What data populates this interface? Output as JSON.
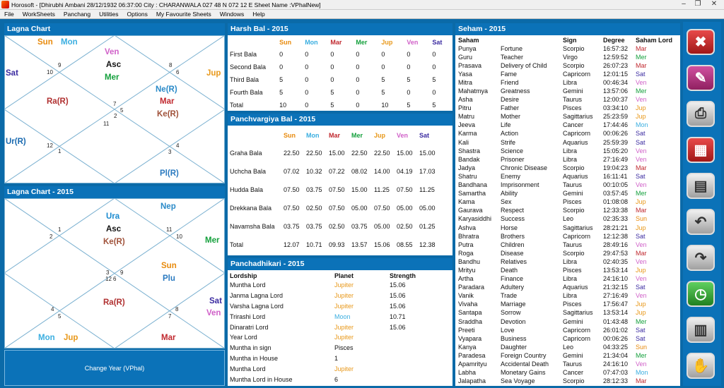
{
  "window": {
    "title": "Horosoft - [Dhirubhi Ambani 28/12/1932 06:37:00  City : CHARANWALA 027 48 N 072 12 E          Sheet Name :VPhalNew]",
    "minimize": "–",
    "restore": "❐",
    "close": "✕"
  },
  "menu": [
    "File",
    "WorkSheets",
    "Panchang",
    "Utilities",
    "Options",
    "My Favourite Sheets",
    "Windows",
    "Help"
  ],
  "lagna_chart": {
    "title": "Lagna Chart",
    "houses": [
      "9",
      "10",
      "8",
      "11",
      "12",
      "1",
      "7",
      "6",
      "5",
      "2",
      "4",
      "3"
    ],
    "planets": {
      "sun": "Sun",
      "mon": "Mon",
      "ven": "Ven",
      "asc": "Asc",
      "mer": "Mer",
      "sat": "Sat",
      "jup": "Jup",
      "ra": "Ra(R)",
      "ne": "Ne(R)",
      "mar": "Mar",
      "ke": "Ke(R)",
      "ur": "Ur(R)",
      "pl": "Pl(R)"
    }
  },
  "lagna_chart_2015": {
    "title": "Lagna Chart - 2015",
    "houses": [
      "1",
      "2",
      "11",
      "10",
      "3",
      "12",
      "4",
      "5",
      "9",
      "6",
      "8",
      "7"
    ],
    "planets": {
      "ura": "Ura",
      "asc": "Asc",
      "ke": "Ke(R)",
      "nep": "Nep",
      "mer": "Mer",
      "sun": "Sun",
      "plu": "Plu",
      "ra": "Ra(R)",
      "sat": "Sat",
      "ven": "Ven",
      "mon": "Mon",
      "jup": "Jup",
      "mar": "Mar"
    }
  },
  "change_year": "Change Year (VPhal)",
  "harsh_bal": {
    "title": "Harsh Bal - 2015",
    "headers": [
      "",
      "Sun",
      "Mon",
      "Mar",
      "Mer",
      "Jup",
      "Ven",
      "Sat"
    ],
    "rows": [
      [
        "First Bala",
        "0",
        "0",
        "0",
        "0",
        "0",
        "0",
        "0"
      ],
      [
        "Second Bala",
        "0",
        "0",
        "0",
        "0",
        "0",
        "0",
        "0"
      ],
      [
        "Third Bala",
        "5",
        "0",
        "0",
        "0",
        "5",
        "5",
        "5"
      ],
      [
        "Fourth Bala",
        "5",
        "0",
        "5",
        "0",
        "5",
        "0",
        "0"
      ],
      [
        "Total",
        "10",
        "0",
        "5",
        "0",
        "10",
        "5",
        "5"
      ]
    ]
  },
  "panchvargiya": {
    "title": "Panchvargiya Bal - 2015",
    "headers": [
      "",
      "Sun",
      "Mon",
      "Mar",
      "Mer",
      "Jup",
      "Ven",
      "Sat"
    ],
    "rows": [
      [
        "Graha Bala",
        "22.50",
        "22.50",
        "15.00",
        "22.50",
        "22.50",
        "15.00",
        "15.00"
      ],
      [
        "Uchcha Bala",
        "07.02",
        "10.32",
        "07.22",
        "08.02",
        "14.00",
        "04.19",
        "17.03"
      ],
      [
        "Hudda Bala",
        "07.50",
        "03.75",
        "07.50",
        "15.00",
        "11.25",
        "07.50",
        "11.25"
      ],
      [
        "Drekkana Bala",
        "07.50",
        "02.50",
        "07.50",
        "05.00",
        "07.50",
        "05.00",
        "05.00"
      ],
      [
        "Navamsha Bala",
        "03.75",
        "03.75",
        "02.50",
        "03.75",
        "05.00",
        "02.50",
        "01.25"
      ],
      [
        "Total",
        "12.07",
        "10.71",
        "09.93",
        "13.57",
        "15.06",
        "08.55",
        "12.38"
      ]
    ]
  },
  "panchadhikari": {
    "title": "Panchadhikari - 2015",
    "headers": [
      "Lordship",
      "Planet",
      "Strength"
    ],
    "rows": [
      [
        "Muntha Lord",
        "Jupiter",
        "15.06"
      ],
      [
        "Janma Lagna Lord",
        "Jupiter",
        "15.06"
      ],
      [
        "Varsha Lagna Lord",
        "Jupiter",
        "15.06"
      ],
      [
        "Trirashi Lord",
        "Moon",
        "10.71"
      ],
      [
        "Dinaratri Lord",
        "Jupiter",
        "15.06"
      ],
      [
        "Year Lord",
        "Jupiter",
        ""
      ],
      [
        "Muntha in sign",
        "Pisces",
        ""
      ],
      [
        "Muntha in House",
        "1",
        ""
      ],
      [
        "Muntha Lord",
        "Jupiter",
        ""
      ],
      [
        "Muntha Lord in House",
        "6",
        ""
      ]
    ]
  },
  "seham": {
    "title": "Seham - 2015",
    "headers": [
      "Saham",
      "",
      "Sign",
      "Degree",
      "Saham Lord"
    ],
    "rows": [
      [
        "Punya",
        "Fortune",
        "Scorpio",
        "16:57:32",
        "Mar"
      ],
      [
        "Guru",
        "Teacher",
        "Virgo",
        "12:59:52",
        "Mer"
      ],
      [
        "Prasava",
        "Delivery of Child",
        "Scorpio",
        "26:07:23",
        "Mar"
      ],
      [
        "Yasa",
        "Fame",
        "Capricorn",
        "12:01:15",
        "Sat"
      ],
      [
        "Mitra",
        "Friend",
        "Libra",
        "00:46:34",
        "Ven"
      ],
      [
        "Mahatmya",
        "Greatness",
        "Gemini",
        "13:57:06",
        "Mer"
      ],
      [
        "Asha",
        "Desire",
        "Taurus",
        "12:00:37",
        "Ven"
      ],
      [
        "Pitru",
        "Father",
        "Pisces",
        "03:34:10",
        "Jup"
      ],
      [
        "Matru",
        "Mother",
        "Sagittarius",
        "25:23:59",
        "Jup"
      ],
      [
        "Jeeva",
        "Life",
        "Cancer",
        "17:44:46",
        "Mon"
      ],
      [
        "Karma",
        "Action",
        "Capricorn",
        "00:06:26",
        "Sat"
      ],
      [
        "Kali",
        "Strife",
        "Aquarius",
        "25:59:39",
        "Sat"
      ],
      [
        "Shastra",
        "Science",
        "Libra",
        "15:05:20",
        "Ven"
      ],
      [
        "Bandak",
        "Prisoner",
        "Libra",
        "27:16:49",
        "Ven"
      ],
      [
        "Jadya",
        "Chronic Disease",
        "Scorpio",
        "19:04:23",
        "Mar"
      ],
      [
        "Shatru",
        "Enemy",
        "Aquarius",
        "16:11:41",
        "Sat"
      ],
      [
        "Bandhana",
        "Imprisonment",
        "Taurus",
        "00:10:05",
        "Ven"
      ],
      [
        "Samartha",
        "Ability",
        "Gemini",
        "03:57:45",
        "Mer"
      ],
      [
        "Kama",
        "Sex",
        "Pisces",
        "01:08:08",
        "Jup"
      ],
      [
        "Gaurava",
        "Respect",
        "Scorpio",
        "12:33:38",
        "Mar"
      ],
      [
        "Karyasiddhi",
        "Success",
        "Leo",
        "02:35:33",
        "Sun"
      ],
      [
        "Ashva",
        "Horse",
        "Sagittarius",
        "28:21:21",
        "Jup"
      ],
      [
        "Bhratra",
        "Brothers",
        "Capricorn",
        "12:12:38",
        "Sat"
      ],
      [
        "Putra",
        "Children",
        "Taurus",
        "28:49:16",
        "Ven"
      ],
      [
        "Roga",
        "Disease",
        "Scorpio",
        "29:47:53",
        "Mar"
      ],
      [
        "Bandhu",
        "Relatives",
        "Libra",
        "02:40:35",
        "Ven"
      ],
      [
        "Mrityu",
        "Death",
        "Pisces",
        "13:53:14",
        "Jup"
      ],
      [
        "Artha",
        "Finance",
        "Libra",
        "24:16:10",
        "Ven"
      ],
      [
        "Paradara",
        "Adultery",
        "Aquarius",
        "21:32:15",
        "Sat"
      ],
      [
        "Vanik",
        "Trade",
        "Libra",
        "27:16:49",
        "Ven"
      ],
      [
        "Vivaha",
        "Marriage",
        "Pisces",
        "17:56:47",
        "Jup"
      ],
      [
        "Santapa",
        "Sorrow",
        "Sagittarius",
        "13:53:14",
        "Jup"
      ],
      [
        "Sraddha",
        "Devotion",
        "Gemini",
        "01:43:48",
        "Mer"
      ],
      [
        "Preeti",
        "Love",
        "Capricorn",
        "26:01:02",
        "Sat"
      ],
      [
        "Vyapara",
        "Business",
        "Capricorn",
        "00:06:26",
        "Sat"
      ],
      [
        "Kanya",
        "Daughter",
        "Leo",
        "04:33:25",
        "Sun"
      ],
      [
        "Paradesa",
        "Foreign Country",
        "Gemini",
        "21:34:04",
        "Mer"
      ],
      [
        "Apamrityu",
        "Accidental Death",
        "Taurus",
        "24:16:10",
        "Ven"
      ],
      [
        "Labha",
        "Monetary Gains",
        "Cancer",
        "07:47:03",
        "Mon"
      ],
      [
        "Jalapatha",
        "Sea Voyage",
        "Scorpio",
        "28:12:33",
        "Mar"
      ]
    ]
  },
  "colors": {
    "Sun": "#e88a0c",
    "Mon": "#3aaee0",
    "Mar": "#c0282e",
    "Mer": "#14a03c",
    "Jup": "#e8981a",
    "Ven": "#d060c8",
    "Sat": "#3a2aa0",
    "Jupiter": "#e8981a",
    "Moon": "#3aaee0"
  },
  "toolbar": [
    {
      "name": "exit-tools-icon",
      "glyph": "✖"
    },
    {
      "name": "edit-icon",
      "glyph": "✎"
    },
    {
      "name": "print-icon",
      "glyph": "⎙"
    },
    {
      "name": "calendar-icon",
      "glyph": "▦"
    },
    {
      "name": "document-icon",
      "glyph": "▤"
    },
    {
      "name": "back-arrow-icon",
      "glyph": "↶"
    },
    {
      "name": "forward-arrow-icon",
      "glyph": "↷"
    },
    {
      "name": "clock-icon",
      "glyph": "◷"
    },
    {
      "name": "notebook-icon",
      "glyph": "▥"
    },
    {
      "name": "handshake-icon",
      "glyph": "✋"
    }
  ]
}
